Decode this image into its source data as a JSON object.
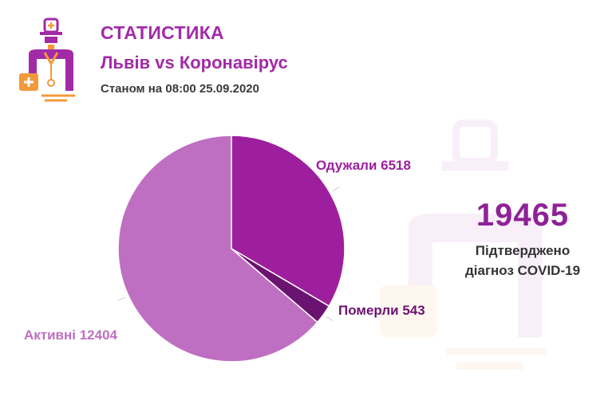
{
  "header": {
    "title": "СТАТИСТИКА",
    "subtitle": "Львів vs Коронавірус",
    "date": "Станом на 08:00 25.09.2020"
  },
  "summary": {
    "value": "19465",
    "caption_line1": "Підтверджено",
    "caption_line2": "діагноз COVID-19"
  },
  "chart_data": {
    "type": "pie",
    "slices": [
      {
        "label": "Одужали",
        "value": 6518,
        "color": "#9e1f9e",
        "label_text": "Одужали 6518"
      },
      {
        "label": "Померли",
        "value": 543,
        "color": "#6b1370",
        "label_text": "Померли 543"
      },
      {
        "label": "Активні",
        "value": 12404,
        "color": "#bf6fc1",
        "label_text": "Активні 12404"
      }
    ]
  },
  "colors": {
    "brand_purple": "#a22aa7",
    "accent_orange": "#f29a3a"
  }
}
